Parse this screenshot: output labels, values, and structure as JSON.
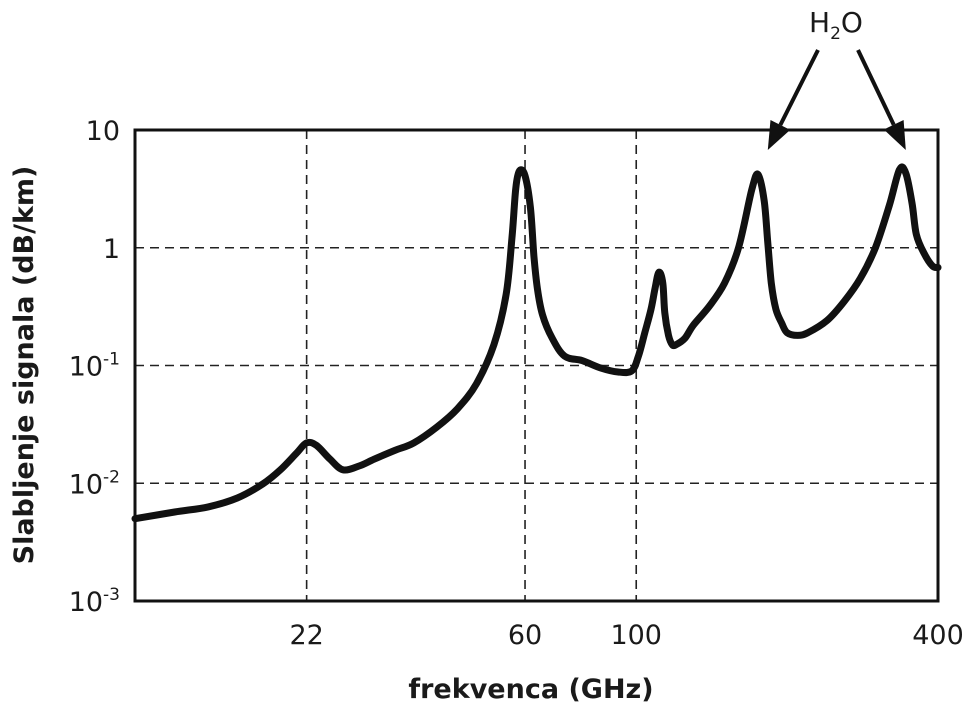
{
  "chart_data": {
    "type": "line",
    "title": "",
    "xlabel": "frekvenca (GHz)",
    "ylabel": "Slabljenje signala (dB/km)",
    "x_scale": "log",
    "y_scale": "log",
    "xlim": [
      10,
      400
    ],
    "ylim": [
      0.001,
      10
    ],
    "x_ticks": [
      {
        "value": 22,
        "label": "22"
      },
      {
        "value": 60,
        "label": "60"
      },
      {
        "value": 100,
        "label": "100"
      },
      {
        "value": 400,
        "label": "400"
      }
    ],
    "y_ticks": [
      {
        "value": 10,
        "base": "10",
        "exp": ""
      },
      {
        "value": 1,
        "base": "1",
        "exp": ""
      },
      {
        "value": 0.1,
        "base": "10",
        "exp": "-1"
      },
      {
        "value": 0.01,
        "base": "10",
        "exp": "-2"
      },
      {
        "value": 0.001,
        "base": "10",
        "exp": "-3"
      }
    ],
    "grid": {
      "dashed": true,
      "x": [
        22,
        60,
        100
      ],
      "y": [
        1,
        0.1,
        0.01
      ]
    },
    "series": [
      {
        "x": [
          10,
          12,
          14,
          16,
          18,
          19.5,
          21,
          22,
          23,
          24.5,
          26,
          28,
          30,
          33,
          36,
          40,
          44,
          48,
          52,
          55,
          56.5,
          57.5,
          58.5,
          60,
          61.5,
          62.5,
          63.5,
          65,
          68,
          72,
          78,
          85,
          92,
          98,
          101,
          104,
          107,
          109,
          111,
          113,
          114,
          116,
          118,
          120,
          125,
          130,
          140,
          150,
          160,
          170,
          175,
          180,
          183,
          186,
          190,
          195,
          200,
          210,
          220,
          240,
          260,
          280,
          300,
          320,
          335,
          345,
          355,
          362,
          375,
          390,
          400
        ],
        "y": [
          0.005,
          0.0057,
          0.0063,
          0.0075,
          0.0099,
          0.013,
          0.018,
          0.022,
          0.021,
          0.016,
          0.013,
          0.014,
          0.016,
          0.019,
          0.022,
          0.03,
          0.043,
          0.07,
          0.15,
          0.4,
          1.2,
          3.2,
          4.5,
          4.1,
          2.2,
          0.85,
          0.45,
          0.27,
          0.17,
          0.12,
          0.11,
          0.095,
          0.088,
          0.09,
          0.12,
          0.19,
          0.3,
          0.45,
          0.62,
          0.5,
          0.28,
          0.18,
          0.15,
          0.15,
          0.17,
          0.22,
          0.32,
          0.5,
          1.0,
          3.1,
          4.2,
          2.5,
          1.1,
          0.5,
          0.3,
          0.23,
          0.19,
          0.18,
          0.19,
          0.24,
          0.35,
          0.55,
          1.0,
          2.3,
          4.6,
          4.3,
          2.4,
          1.3,
          0.9,
          0.7,
          0.68
        ]
      }
    ],
    "annotations": [
      {
        "text": "H",
        "sub": "2",
        "suffix": "O",
        "arrow_targets_x": [
          183,
          345
        ]
      }
    ]
  }
}
